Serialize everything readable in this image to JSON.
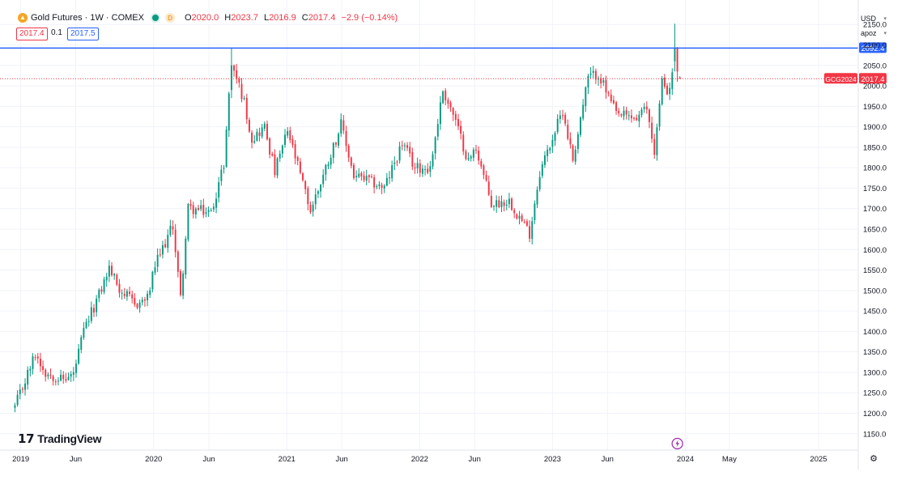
{
  "header": {
    "symbol_title": "Gold Futures · 1W · COMEX",
    "interval_badge": "D",
    "open_label": "O",
    "open_value": "2020.0",
    "high_label": "H",
    "high_value": "2023.7",
    "low_label": "L",
    "low_value": "2016.9",
    "close_label": "C",
    "close_value": "2017.4",
    "change": "−2.9 (−0.14%)"
  },
  "trade": {
    "sell_price": "2017.4",
    "spread": "0.1",
    "buy_price": "2017.5"
  },
  "axis_controls": {
    "currency": "USD",
    "scale_mode": "apoz"
  },
  "branding": {
    "name": "TradingView"
  },
  "colors": {
    "up": "#089981",
    "down": "#f23645",
    "hline": "#2962ff",
    "grid": "#f0f3fa",
    "axis_text": "#131722"
  },
  "icons": {
    "symbol_logo": "gold-coin-icon",
    "market_status": "green-dot-icon",
    "event": "lightning-icon",
    "settings": "gear-icon"
  },
  "chart_data": {
    "type": "candlestick",
    "title": "Gold Futures · 1W · COMEX",
    "yaxis": {
      "ylim": [
        1110,
        2190
      ],
      "ticks": [
        1150,
        1200,
        1250,
        1300,
        1350,
        1400,
        1450,
        1500,
        1550,
        1600,
        1650,
        1700,
        1750,
        1800,
        1850,
        1900,
        1950,
        2000,
        2050,
        2100,
        2150
      ],
      "tick_labels": [
        "1150.0",
        "1200.0",
        "1250.0",
        "1300.0",
        "1350.0",
        "1400.0",
        "1450.0",
        "1500.0",
        "1550.0",
        "1600.0",
        "1650.0",
        "1700.0",
        "1750.0",
        "1800.0",
        "1850.0",
        "1900.0",
        "1950.0",
        "2000.0",
        "2050.0",
        "2100.0",
        "2150.0"
      ]
    },
    "xaxis": {
      "xlim": [
        "2018-12-15",
        "2025-04-20"
      ],
      "ticks": [
        "2019-01-01",
        "2019-06-01",
        "2020-01-01",
        "2020-06-01",
        "2021-01-01",
        "2021-06-01",
        "2022-01-01",
        "2022-06-01",
        "2023-01-01",
        "2023-06-01",
        "2024-01-01",
        "2024-05-01",
        "2025-01-01"
      ],
      "tick_labels": [
        "2019",
        "Jun",
        "2020",
        "Jun",
        "2021",
        "Jun",
        "2022",
        "Jun",
        "2023",
        "Jun",
        "2024",
        "May",
        "2025"
      ]
    },
    "horizontal_line": {
      "value": 2092.4,
      "label": "2092.4"
    },
    "last_price": {
      "value": 2017.4,
      "label": "2017.4",
      "symbol": "GCG2024"
    },
    "anchors": [
      [
        "2018-12-16",
        1215
      ],
      [
        "2019-02-10",
        1345
      ],
      [
        "2019-03-10",
        1300
      ],
      [
        "2019-04-28",
        1282
      ],
      [
        "2019-05-26",
        1295
      ],
      [
        "2019-06-23",
        1400
      ],
      [
        "2019-08-11",
        1505
      ],
      [
        "2019-09-01",
        1555
      ],
      [
        "2019-09-29",
        1505
      ],
      [
        "2019-11-10",
        1465
      ],
      [
        "2019-12-15",
        1480
      ],
      [
        "2020-01-05",
        1560
      ],
      [
        "2020-02-23",
        1660
      ],
      [
        "2020-03-15",
        1480
      ],
      [
        "2020-04-05",
        1700
      ],
      [
        "2020-06-07",
        1690
      ],
      [
        "2020-07-12",
        1810
      ],
      [
        "2020-08-02",
        2060
      ],
      [
        "2020-09-06",
        1960
      ],
      [
        "2020-09-27",
        1870
      ],
      [
        "2020-11-01",
        1900
      ],
      [
        "2020-11-29",
        1790
      ],
      [
        "2021-01-03",
        1890
      ],
      [
        "2021-03-07",
        1695
      ],
      [
        "2021-05-30",
        1905
      ],
      [
        "2021-07-04",
        1780
      ],
      [
        "2021-08-08",
        1770
      ],
      [
        "2021-09-26",
        1750
      ],
      [
        "2021-11-14",
        1860
      ],
      [
        "2021-12-19",
        1800
      ],
      [
        "2022-01-30",
        1800
      ],
      [
        "2022-03-06",
        1990
      ],
      [
        "2022-04-03",
        1930
      ],
      [
        "2022-05-15",
        1815
      ],
      [
        "2022-06-05",
        1850
      ],
      [
        "2022-07-17",
        1710
      ],
      [
        "2022-09-04",
        1720
      ],
      [
        "2022-10-30",
        1640
      ],
      [
        "2022-11-27",
        1790
      ],
      [
        "2023-01-29",
        1940
      ],
      [
        "2023-02-26",
        1820
      ],
      [
        "2023-04-09",
        2020
      ],
      [
        "2023-05-07",
        2030
      ],
      [
        "2023-06-25",
        1930
      ],
      [
        "2023-08-20",
        1920
      ],
      [
        "2023-09-17",
        1945
      ],
      [
        "2023-10-08",
        1840
      ],
      [
        "2023-10-29",
        2010
      ],
      [
        "2023-11-19",
        1985
      ],
      [
        "2023-12-03",
        2085
      ],
      [
        "2023-12-10",
        2035
      ],
      [
        "2023-12-17",
        2017.4
      ]
    ],
    "overrides": [
      [
        "2020-08-02",
        1990,
        2092,
        1970,
        2050
      ],
      [
        "2023-12-03",
        2060,
        2152,
        2035,
        2092
      ],
      [
        "2023-12-10",
        2092,
        2095,
        2010,
        2035
      ],
      [
        "2023-12-17",
        2020.0,
        2023.7,
        2016.9,
        2017.4
      ]
    ]
  }
}
